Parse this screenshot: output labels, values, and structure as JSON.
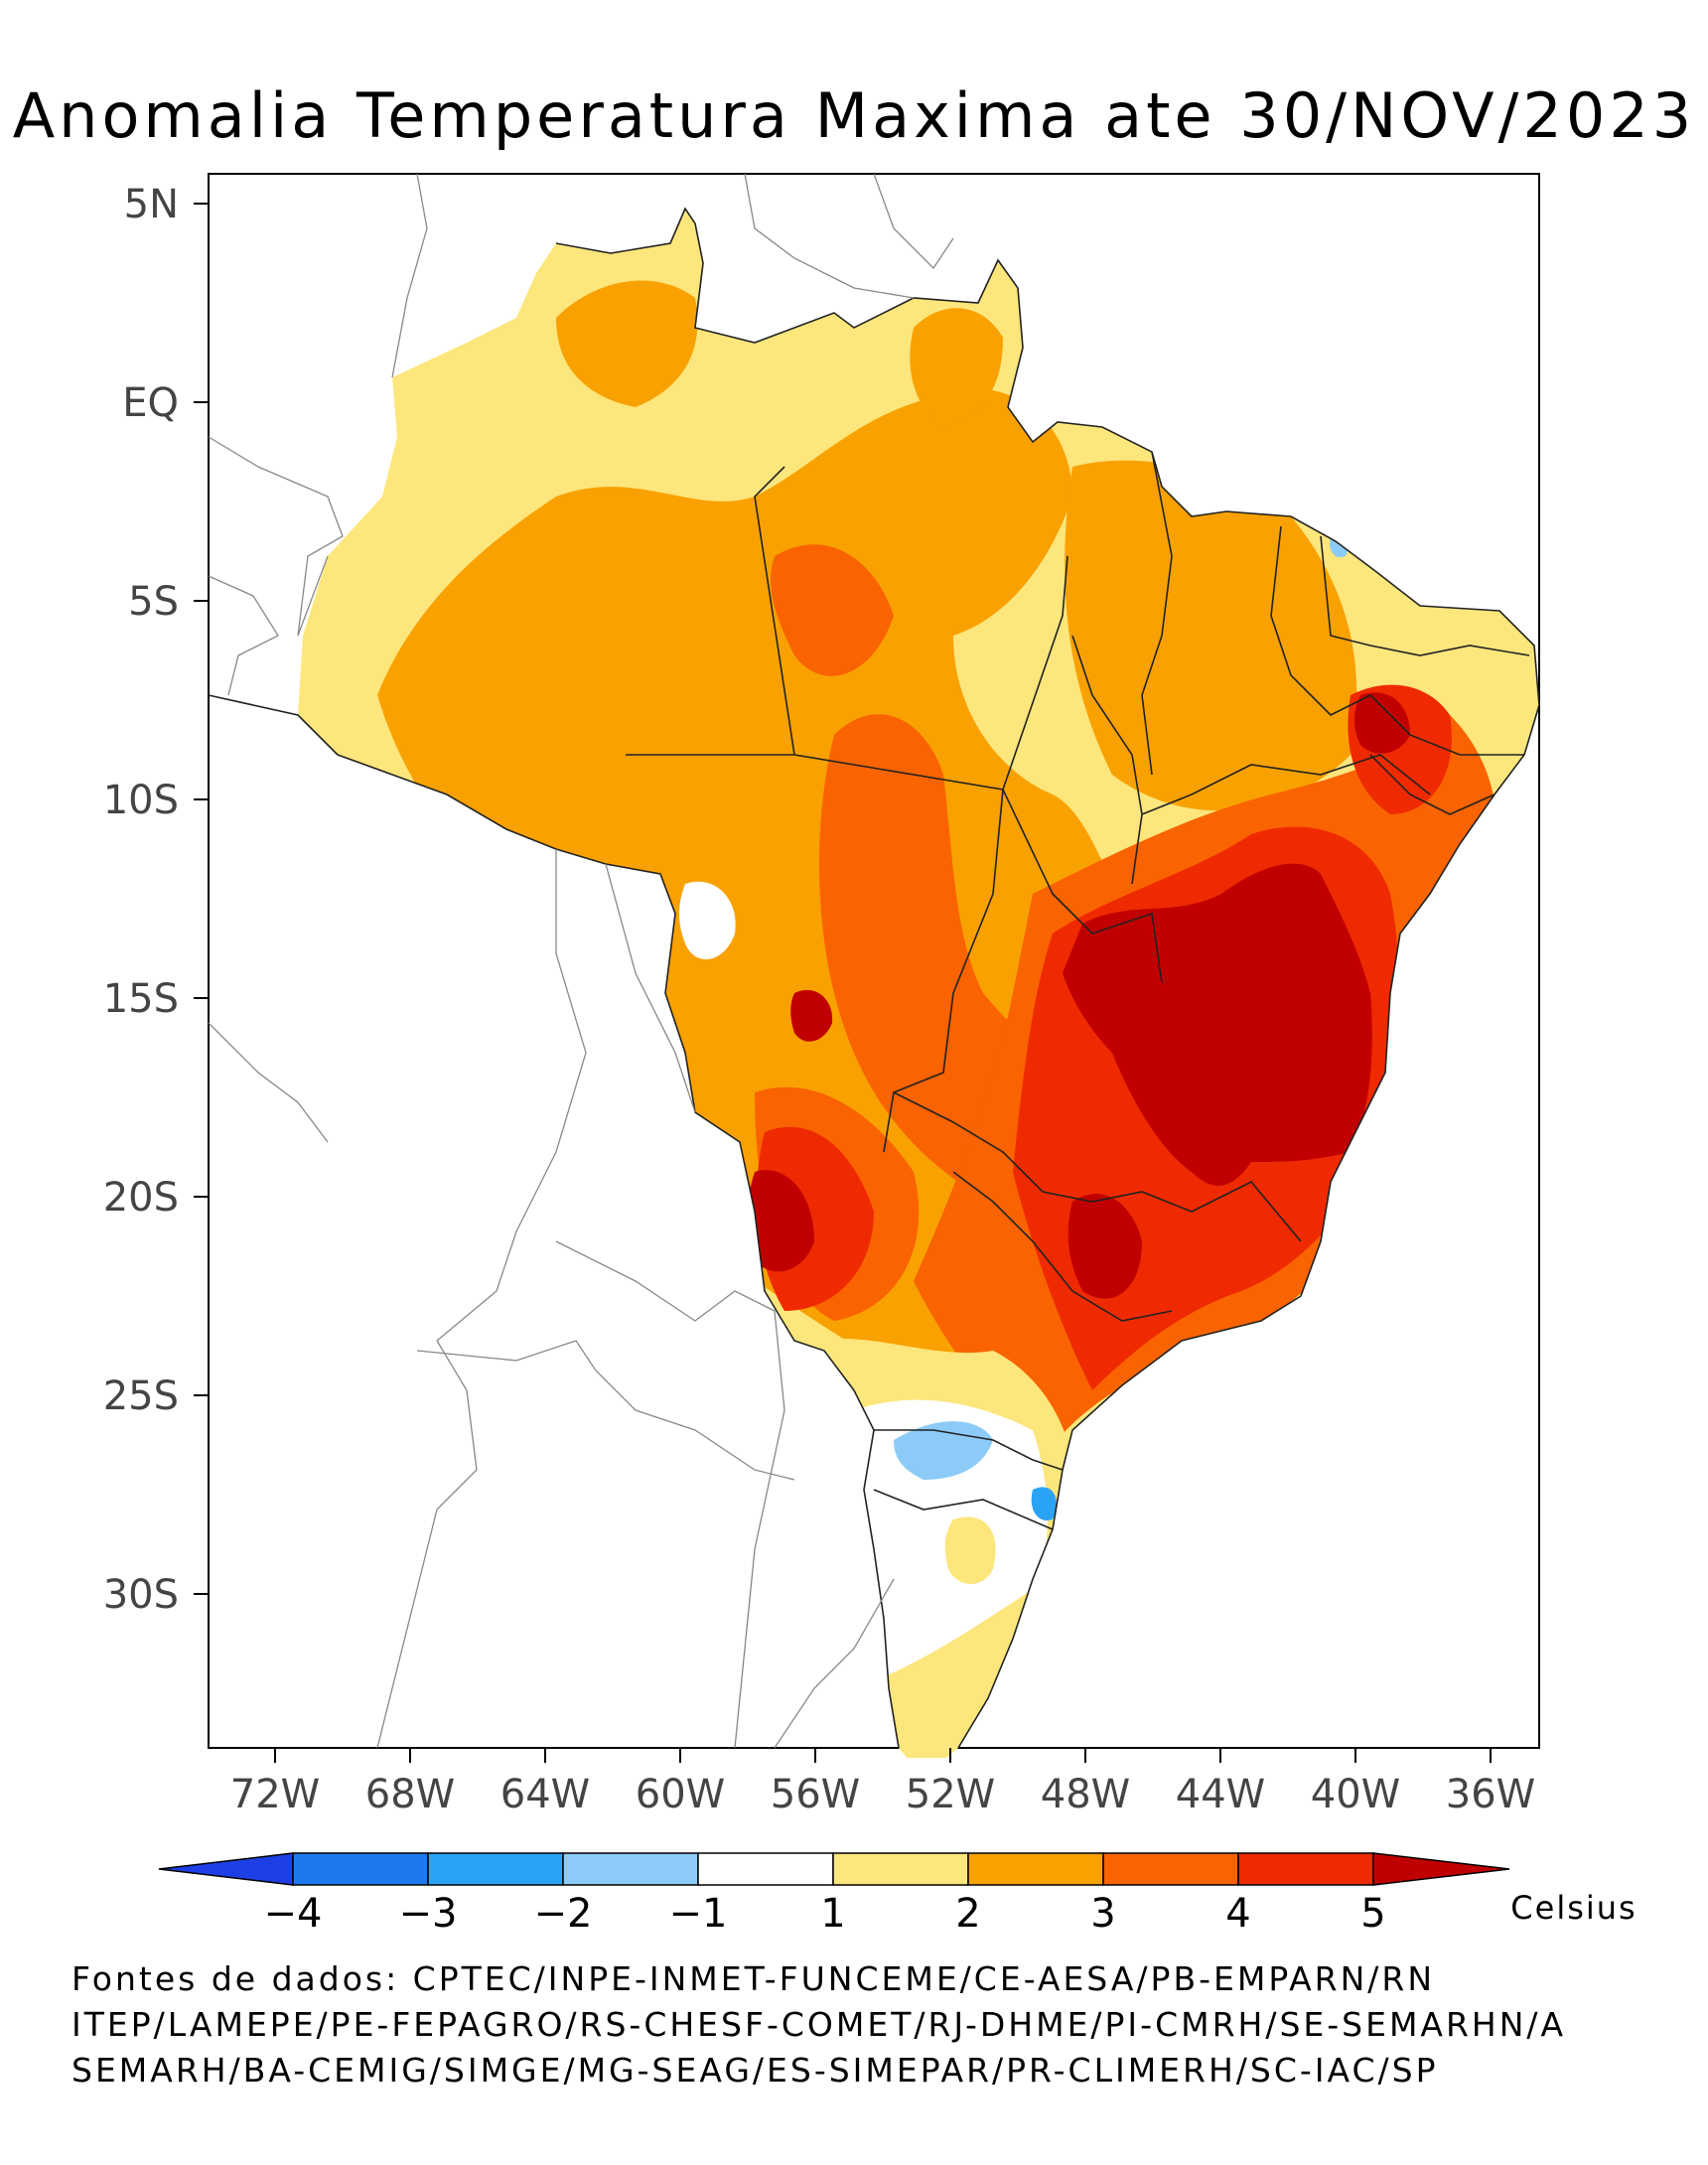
{
  "title": "Anomalia Temperatura Maxima ate 30/NOV/2023",
  "lat_ticks": [
    "5N",
    "EQ",
    "5S",
    "10S",
    "15S",
    "20S",
    "25S",
    "30S"
  ],
  "lon_ticks": [
    "72W",
    "68W",
    "64W",
    "60W",
    "56W",
    "52W",
    "48W",
    "44W",
    "40W",
    "36W"
  ],
  "legend": {
    "units": "Celsius",
    "labels": [
      "−4",
      "−3",
      "−2",
      "−1",
      "1",
      "2",
      "3",
      "4",
      "5"
    ],
    "colors": [
      "#1f3fe6",
      "#1e78ef",
      "#2ba3f5",
      "#8ccbf8",
      "#ffffff",
      "#fde67c",
      "#f9a100",
      "#f96300",
      "#ef2a00",
      "#c00000"
    ]
  },
  "sources": [
    "Fontes de dados: CPTEC/INPE-INMET-FUNCEME/CE-AESA/PB-EMPARN/RN",
    "ITEP/LAMEPE/PE-FEPAGRO/RS-CHESF-COMET/RJ-DHME/PI-CMRH/SE-SEMARHN/A",
    "SEMARH/BA-CEMIG/SIMGE/MG-SEAG/ES-SIMEPAR/PR-CLIMERH/SC-IAC/SP"
  ],
  "chart_data": {
    "type": "heatmap",
    "variable": "temperature anomaly (Celsius)",
    "lat_range": [
      -34,
      6
    ],
    "lon_range": [
      -74,
      -34
    ]
  }
}
